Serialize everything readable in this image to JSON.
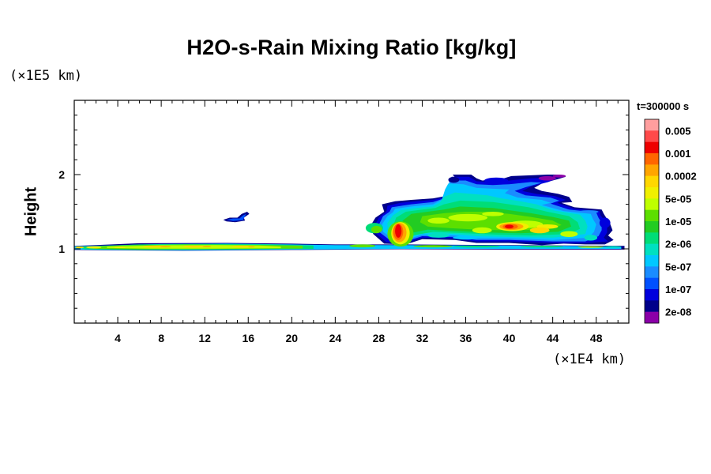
{
  "chart_data": {
    "type": "heatmap",
    "title": "H2O-s-Rain Mixing Ratio [kg/kg]",
    "ylabel": "Height",
    "xlabel": "",
    "x_scale_label": "(×1E4 km)",
    "y_scale_label": "(×1E5 km)",
    "time_label": "t=300000 s",
    "xlim": [
      0,
      51
    ],
    "ylim": [
      0,
      3
    ],
    "x_ticks": [
      4,
      8,
      12,
      16,
      20,
      24,
      28,
      32,
      36,
      40,
      44,
      48
    ],
    "y_ticks": [
      1,
      2
    ],
    "colorbar": {
      "labels": [
        "0.005",
        "0.001",
        "0.0002",
        "5e-05",
        "1e-05",
        "2e-06",
        "5e-07",
        "1e-07",
        "2e-08"
      ],
      "colors": [
        "#ff9e9e",
        "#ff4a4a",
        "#ee0000",
        "#ff6600",
        "#ffa500",
        "#ffd700",
        "#f0f000",
        "#bfff00",
        "#5cdf00",
        "#22cc22",
        "#00dd77",
        "#00e0c0",
        "#00c8ff",
        "#1a8cff",
        "#0050ff",
        "#0000dd",
        "#00008a",
        "#8b00a8"
      ]
    },
    "regions": [
      {
        "name": "low layer",
        "x": [
          0,
          50.5
        ],
        "y": [
          0.97,
          1.07
        ],
        "level": "1e-05"
      },
      {
        "name": "small cloud",
        "x": [
          13.7,
          16.0
        ],
        "y": [
          1.35,
          1.5
        ],
        "level": "1e-07"
      },
      {
        "name": "upper cloud",
        "x": [
          26,
          49.5
        ],
        "y": [
          1.0,
          2.0
        ],
        "level": "2e-06"
      },
      {
        "name": "core 1",
        "x": [
          29.5,
          30.5
        ],
        "y": [
          1.07,
          1.35
        ],
        "level": "0.001"
      },
      {
        "name": "core 2",
        "x": [
          39.5,
          41.5
        ],
        "y": [
          1.2,
          1.35
        ],
        "level": "0.0002"
      }
    ]
  }
}
